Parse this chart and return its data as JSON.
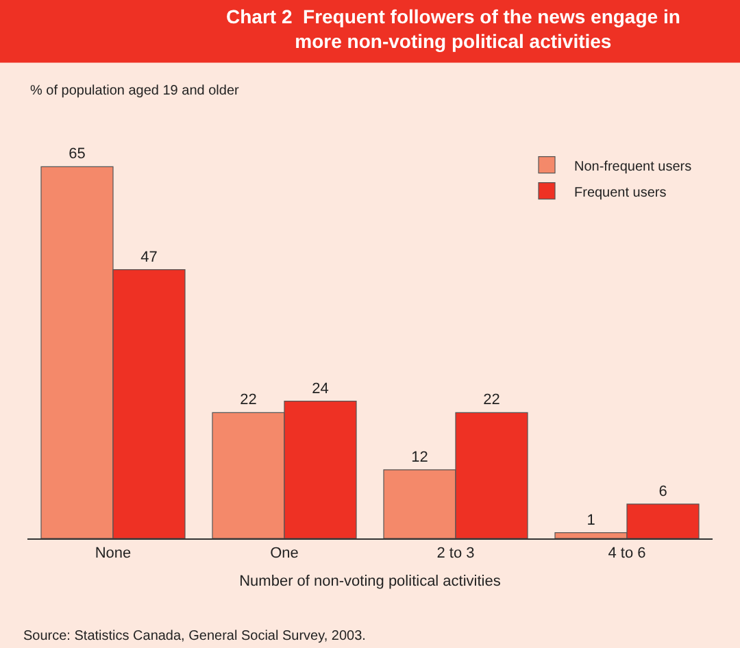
{
  "chart_data": {
    "type": "bar",
    "title": "Chart 2  Frequent followers of the news engage in more non-voting political activities",
    "ylabel": "% of population aged 19 and older",
    "xlabel": "Number of non-voting political activities",
    "categories": [
      "None",
      "One",
      "2 to 3",
      "4 to 6"
    ],
    "series": [
      {
        "name": "Non-frequent users",
        "color": "#f4896a",
        "values": [
          65,
          22,
          12,
          1
        ]
      },
      {
        "name": "Frequent users",
        "color": "#ee3124",
        "values": [
          47,
          24,
          22,
          6
        ]
      }
    ],
    "data_labels": true,
    "legend": "top right",
    "grid": false,
    "annotations": [
      "Source: Statistics Canada, General Social Survey, 2003."
    ]
  }
}
